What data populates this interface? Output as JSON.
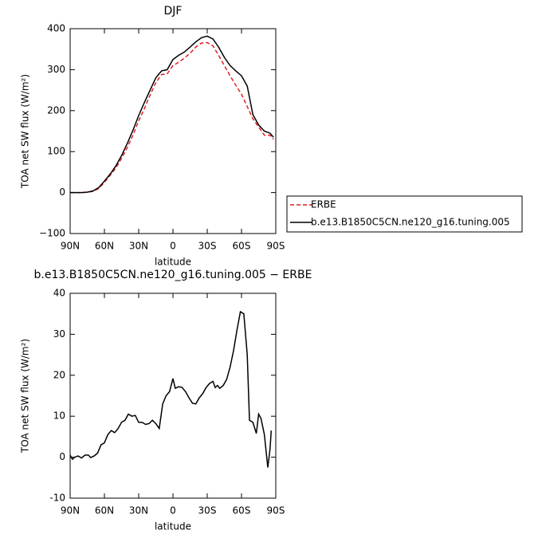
{
  "chart_data": [
    {
      "type": "line",
      "title": "DJF",
      "ylabel": "TOA net SW flux (W/m²)",
      "xlabel": "latitude",
      "legend": "right",
      "xlim": [
        90,
        -90
      ],
      "ylim": [
        -100,
        400
      ],
      "xticks": [
        {
          "value": 90,
          "label": "90N"
        },
        {
          "value": 60,
          "label": "60N"
        },
        {
          "value": 30,
          "label": "30N"
        },
        0,
        {
          "value": -30,
          "label": "30S"
        },
        {
          "value": -60,
          "label": "60S"
        },
        {
          "value": -90,
          "label": "90S"
        }
      ],
      "yticks": [
        {
          "value": -100,
          "label": "−100"
        },
        0,
        100,
        200,
        300,
        400
      ],
      "series": [
        {
          "name": "ERBE",
          "color": "#e02020",
          "dash": true,
          "x": [
            90,
            85,
            80,
            75,
            70,
            65,
            60,
            55,
            50,
            45,
            40,
            35,
            30,
            25,
            20,
            15,
            10,
            5,
            0,
            -5,
            -10,
            -15,
            -20,
            -25,
            -30,
            -35,
            -40,
            -45,
            -50,
            -55,
            -60,
            -65,
            -70,
            -75,
            -80,
            -85,
            -88
          ],
          "values": [
            0,
            0,
            0,
            1,
            3,
            10,
            25,
            42,
            60,
            83,
            110,
            140,
            175,
            205,
            238,
            268,
            288,
            290,
            310,
            318,
            328,
            340,
            355,
            365,
            366,
            358,
            335,
            310,
            285,
            262,
            240,
            210,
            180,
            160,
            140,
            140,
            130
          ]
        },
        {
          "name": "b.e13.B1850C5CN.ne120_g16.tuning.005",
          "color": "#000000",
          "dash": false,
          "x": [
            90,
            85,
            80,
            75,
            70,
            65,
            60,
            55,
            50,
            45,
            40,
            35,
            30,
            25,
            20,
            15,
            10,
            5,
            0,
            -5,
            -10,
            -15,
            -20,
            -25,
            -30,
            -35,
            -40,
            -45,
            -50,
            -55,
            -60,
            -65,
            -70,
            -75,
            -80,
            -85,
            -88
          ],
          "values": [
            0,
            0,
            0,
            1,
            4,
            12,
            28,
            45,
            65,
            90,
            120,
            152,
            188,
            220,
            250,
            280,
            297,
            300,
            325,
            335,
            343,
            355,
            368,
            378,
            382,
            375,
            355,
            330,
            310,
            297,
            285,
            260,
            190,
            165,
            150,
            145,
            135
          ]
        }
      ]
    },
    {
      "type": "line",
      "title": "b.e13.B1850C5CN.ne120_g16.tuning.005 − ERBE",
      "ylabel": "TOA net SW flux (W/m²)",
      "xlabel": "latitude",
      "xlim": [
        90,
        -90
      ],
      "ylim": [
        -10,
        40
      ],
      "xticks": [
        {
          "value": 90,
          "label": "90N"
        },
        {
          "value": 60,
          "label": "60N"
        },
        {
          "value": 30,
          "label": "30N"
        },
        0,
        {
          "value": -30,
          "label": "30S"
        },
        {
          "value": -60,
          "label": "60S"
        },
        {
          "value": -90,
          "label": "90S"
        }
      ],
      "yticks": [
        -10,
        0,
        10,
        20,
        30,
        40
      ],
      "series": [
        {
          "color": "#000000",
          "dash": false,
          "x": [
            90,
            88,
            86,
            83,
            80,
            77,
            74,
            72,
            69,
            66,
            63,
            60,
            57,
            54,
            51,
            48,
            45,
            42,
            39,
            36,
            33,
            30,
            27,
            24,
            21,
            18,
            15,
            12,
            9,
            6,
            3,
            0,
            -2,
            -5,
            -8,
            -11,
            -14,
            -17,
            -20,
            -23,
            -26,
            -29,
            -32,
            -35,
            -37,
            -39,
            -41,
            -44,
            -47,
            -50,
            -53,
            -56,
            -59,
            -62,
            -65,
            -67,
            -70,
            -73,
            -75,
            -77,
            -80,
            -83,
            -85,
            -86
          ],
          "values": [
            0.5,
            -0.5,
            0,
            0.3,
            -0.2,
            0.5,
            0.5,
            -0.1,
            0.3,
            1,
            3,
            3.5,
            5.5,
            6.5,
            6,
            7,
            8.5,
            9,
            10.5,
            10,
            10.2,
            8.5,
            8.5,
            8,
            8.2,
            9,
            8.2,
            7,
            13,
            15,
            16,
            19.2,
            16.8,
            17.2,
            17,
            16,
            14.5,
            13.2,
            13,
            14.5,
            15.5,
            17,
            18,
            18.5,
            17,
            17.5,
            16.8,
            17.5,
            19,
            22,
            26,
            31,
            35.5,
            35,
            25,
            9,
            8.5,
            5.8,
            10.5,
            9.5,
            5.5,
            -2.5,
            2,
            6.5
          ]
        }
      ]
    }
  ]
}
